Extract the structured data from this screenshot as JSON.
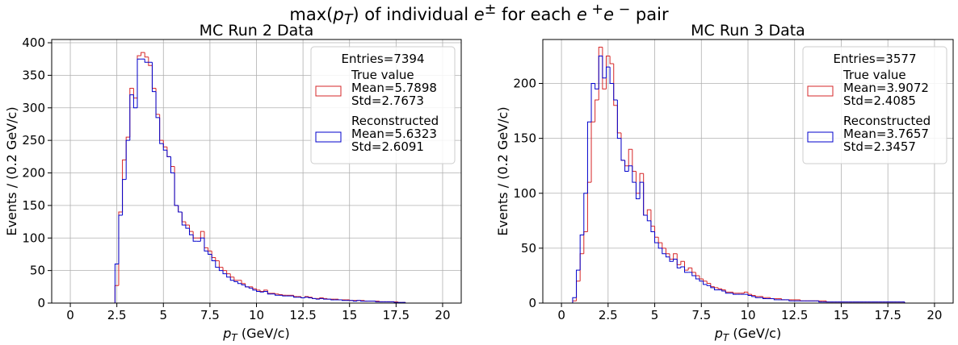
{
  "figure": {
    "suptitle_html": "max(<i>p</i><sub><i>T</i></sub>) of individual <i>e</i><sup>±</sup> for each <i>e</i><sup> +</sup><i>e</i><sup> −</sup> pair"
  },
  "colors": {
    "true_value": "#d62728",
    "reconstructed": "#0000cc",
    "grid": "#b0b0b0"
  },
  "chart_data": [
    {
      "type": "histogram",
      "title": "MC Run 2 Data",
      "xlabel": "p_T (GeV/c)",
      "ylabel": "Events / (0.2 GeV/c)",
      "xlim": [
        -1,
        21
      ],
      "ylim": [
        0,
        405
      ],
      "xticks": [
        0,
        2.5,
        5,
        7.5,
        10,
        12.5,
        15,
        17.5,
        20
      ],
      "xtick_labels": [
        "0",
        "2.5",
        "5",
        "7.5",
        "10",
        "12.5",
        "15",
        "17.5",
        "20"
      ],
      "yticks": [
        0,
        50,
        100,
        150,
        200,
        250,
        300,
        350,
        400
      ],
      "bin_start": 2.4,
      "bin_width": 0.2,
      "grid": true,
      "legend": {
        "position": "top-right",
        "title": "Entries=7394",
        "entries": [
          {
            "name": "True value",
            "lines": [
              "True value",
              "Mean=5.7898",
              "Std=2.7673"
            ]
          },
          {
            "name": "Reconstructed",
            "lines": [
              "Reconstructed",
              "Mean=5.6323",
              "Std=2.6091"
            ]
          }
        ]
      },
      "series": [
        {
          "name": "True value",
          "values": [
            27,
            140,
            220,
            255,
            330,
            315,
            380,
            385,
            378,
            365,
            330,
            290,
            250,
            240,
            225,
            210,
            150,
            140,
            125,
            120,
            110,
            100,
            100,
            110,
            85,
            80,
            70,
            65,
            55,
            50,
            45,
            40,
            35,
            35,
            30,
            25,
            25,
            22,
            20,
            18,
            20,
            15,
            15,
            14,
            13,
            12,
            12,
            12,
            10,
            10,
            8,
            10,
            9,
            7,
            7,
            8,
            7,
            6,
            6,
            6,
            5,
            5,
            5,
            4,
            4,
            4,
            4,
            3,
            3,
            3,
            3,
            2,
            2,
            2,
            2,
            2,
            1,
            1
          ]
        },
        {
          "name": "Reconstructed",
          "values": [
            60,
            135,
            190,
            250,
            320,
            300,
            375,
            375,
            370,
            370,
            325,
            285,
            245,
            235,
            225,
            200,
            150,
            140,
            120,
            115,
            105,
            95,
            95,
            100,
            80,
            75,
            65,
            55,
            50,
            45,
            40,
            35,
            33,
            30,
            28,
            25,
            23,
            20,
            18,
            17,
            18,
            14,
            14,
            12,
            12,
            11,
            11,
            11,
            9,
            9,
            8,
            9,
            8,
            7,
            6,
            7,
            6,
            6,
            5,
            5,
            5,
            4,
            4,
            4,
            3,
            4,
            3,
            3,
            3,
            3,
            2,
            2,
            2,
            2,
            2,
            1,
            1,
            1
          ]
        }
      ]
    },
    {
      "type": "histogram",
      "title": "MC Run 3 Data",
      "xlabel": "p_T (GeV/c)",
      "ylabel": "Events / (0.2 GeV/c)",
      "xlim": [
        -1,
        21
      ],
      "ylim": [
        0,
        240
      ],
      "xticks": [
        0,
        2.5,
        5,
        7.5,
        10,
        12.5,
        15,
        17.5,
        20
      ],
      "xtick_labels": [
        "0",
        "2.5",
        "5",
        "7.5",
        "10",
        "12.5",
        "15",
        "17.5",
        "20"
      ],
      "yticks": [
        0,
        50,
        100,
        150,
        200
      ],
      "bin_start": 0.6,
      "bin_width": 0.2,
      "grid": true,
      "legend": {
        "position": "top-right",
        "title": "Entries=3577",
        "entries": [
          {
            "name": "True value",
            "lines": [
              "True value",
              "Mean=3.9072",
              "Std=2.4085"
            ]
          },
          {
            "name": "Reconstructed",
            "lines": [
              "Reconstructed",
              "Mean=3.7657",
              "Std=2.3457"
            ]
          }
        ]
      },
      "series": [
        {
          "name": "True value",
          "values": [
            2,
            20,
            45,
            65,
            110,
            165,
            185,
            233,
            195,
            225,
            218,
            180,
            155,
            130,
            125,
            140,
            120,
            100,
            118,
            80,
            85,
            70,
            60,
            55,
            50,
            45,
            40,
            45,
            35,
            38,
            30,
            32,
            28,
            25,
            22,
            20,
            18,
            15,
            14,
            13,
            12,
            10,
            10,
            9,
            9,
            9,
            10,
            8,
            7,
            6,
            6,
            5,
            5,
            4,
            4,
            4,
            3,
            3,
            3,
            3,
            3,
            2,
            2,
            2,
            2,
            2,
            2,
            2,
            1,
            1,
            1,
            1,
            1,
            1,
            1,
            1,
            1,
            1,
            1,
            1,
            1,
            1,
            1,
            1,
            1,
            1,
            1,
            1,
            1,
            0,
            0,
            0
          ]
        },
        {
          "name": "Reconstructed",
          "values": [
            5,
            30,
            62,
            100,
            165,
            200,
            195,
            225,
            205,
            215,
            200,
            185,
            150,
            130,
            120,
            125,
            110,
            95,
            110,
            80,
            75,
            65,
            55,
            50,
            45,
            42,
            38,
            40,
            32,
            33,
            28,
            28,
            25,
            22,
            20,
            17,
            16,
            14,
            12,
            12,
            11,
            9,
            9,
            8,
            8,
            8,
            8,
            7,
            6,
            5,
            5,
            4,
            4,
            4,
            3,
            3,
            3,
            3,
            2,
            2,
            2,
            2,
            2,
            2,
            2,
            2,
            1,
            1,
            1,
            1,
            1,
            1,
            1,
            1,
            1,
            1,
            1,
            1,
            1,
            1,
            1,
            1,
            1,
            1,
            1,
            1,
            1,
            1,
            1,
            0,
            0,
            0
          ]
        }
      ]
    }
  ]
}
